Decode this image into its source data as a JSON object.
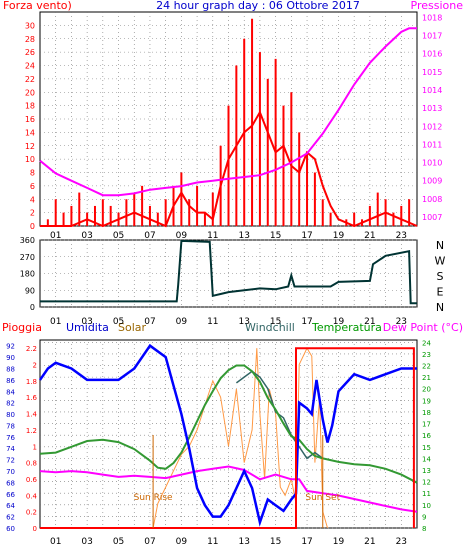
{
  "title": "24 hour graph day : 06 Ottobre 2017",
  "colors": {
    "wind": "#ff0000",
    "gust": "#ff0000",
    "pressure": "#ff00ff",
    "dir": "#003333",
    "hum": "#0000ff",
    "solar": "#ff9944",
    "windchill": "#336666",
    "temp": "#339933",
    "dew": "#ff00ff",
    "rain": "#ff0000",
    "title": "#0000cc",
    "grid": "#777777"
  },
  "x_ticks": [
    "01",
    "03",
    "05",
    "07",
    "09",
    "11",
    "13",
    "15",
    "17",
    "19",
    "21",
    "23"
  ],
  "chart_data": [
    {
      "type": "line",
      "id": "wind_pressure",
      "left_label": "Forza vento)",
      "right_label": "Pressione",
      "left_ticks": [
        "0",
        "2",
        "4",
        "6",
        "8",
        "10",
        "12",
        "14",
        "16",
        "18",
        "20",
        "22",
        "24",
        "26",
        "28",
        "30"
      ],
      "right_ticks": [
        "1007",
        "1008",
        "1009",
        "1010",
        "1011",
        "1012",
        "1013",
        "1014",
        "1015",
        "1016",
        "1017",
        "1018"
      ],
      "ylim_left": [
        0,
        32
      ],
      "ylim_right": [
        1006.5,
        1018.3
      ],
      "xlim": [
        0,
        24
      ],
      "series": [
        {
          "key": "gust",
          "axis": "left",
          "style": "bars",
          "x": [
            0.5,
            1.0,
            1.5,
            2.0,
            2.5,
            3.0,
            3.5,
            4.0,
            4.5,
            5.0,
            5.5,
            6.0,
            6.5,
            7.0,
            7.5,
            8.0,
            8.5,
            9.0,
            9.5,
            10.0,
            10.5,
            11.0,
            11.5,
            12.0,
            12.5,
            13.0,
            13.5,
            14.0,
            14.5,
            15.0,
            15.5,
            16.0,
            16.5,
            17.0,
            17.5,
            18.0,
            18.5,
            19.0,
            19.5,
            20.0,
            20.5,
            21.0,
            21.5,
            22.0,
            22.5,
            23.0,
            23.5
          ],
          "values": [
            1,
            4,
            2,
            3,
            5,
            2,
            3,
            4,
            3,
            2,
            4,
            5,
            6,
            3,
            2,
            4,
            6,
            8,
            4,
            6,
            2,
            5,
            12,
            18,
            24,
            28,
            31,
            26,
            22,
            25,
            18,
            20,
            14,
            11,
            8,
            4,
            2,
            0,
            1,
            2,
            1,
            3,
            5,
            4,
            2,
            3,
            4
          ]
        },
        {
          "key": "wind",
          "axis": "left",
          "style": "line",
          "x": [
            0,
            1,
            2,
            3,
            4,
            5,
            6,
            7,
            8,
            8.5,
            9,
            9.5,
            10,
            10.5,
            11,
            11.5,
            12,
            12.5,
            13,
            13.5,
            14,
            14.5,
            15,
            15.5,
            16,
            16.5,
            17,
            17.5,
            18,
            18.5,
            19,
            20,
            21,
            22,
            23,
            24
          ],
          "values": [
            0,
            0,
            0,
            1,
            0,
            1,
            2,
            1,
            0,
            3,
            5,
            3,
            2,
            2,
            1,
            6,
            10,
            12,
            14,
            15,
            17,
            14,
            11,
            12,
            9,
            8,
            11,
            10,
            6,
            3,
            1,
            0,
            1,
            2,
            1,
            0
          ]
        },
        {
          "key": "pressure",
          "axis": "right",
          "style": "line",
          "x": [
            0,
            1,
            2,
            3,
            4,
            5,
            6,
            7,
            8,
            9,
            10,
            11,
            12,
            13,
            14,
            15,
            16,
            17,
            18,
            19,
            20,
            21,
            22,
            23,
            23.5,
            24
          ],
          "values": [
            1010.1,
            1009.4,
            1009.0,
            1008.6,
            1008.2,
            1008.2,
            1008.3,
            1008.5,
            1008.6,
            1008.7,
            1008.9,
            1009.0,
            1009.1,
            1009.2,
            1009.3,
            1009.6,
            1010.0,
            1010.5,
            1011.6,
            1012.9,
            1014.3,
            1015.5,
            1016.4,
            1017.2,
            1017.4,
            1017.4
          ]
        }
      ]
    },
    {
      "type": "line",
      "id": "wind_direction",
      "left_ticks": [
        "0",
        "90",
        "180",
        "270",
        "360"
      ],
      "right_labels": [
        "N",
        "W",
        "S",
        "E",
        "N"
      ],
      "ylim": [
        0,
        360
      ],
      "xlim": [
        0,
        24
      ],
      "series": [
        {
          "key": "dir",
          "x": [
            0,
            8.7,
            8.8,
            9.0,
            10.8,
            11.0,
            11.5,
            12,
            13,
            14,
            15,
            15.8,
            16,
            16.2,
            17,
            18.5,
            19,
            21,
            21.2,
            22,
            23.5,
            23.6,
            24
          ],
          "values": [
            30,
            30,
            120,
            355,
            350,
            60,
            70,
            80,
            90,
            100,
            95,
            110,
            170,
            110,
            110,
            110,
            135,
            140,
            230,
            275,
            300,
            20,
            20
          ]
        }
      ]
    },
    {
      "type": "line",
      "id": "rain_humidity_temperature",
      "labels": [
        "Pioggia",
        "Umidita",
        "Solar",
        "Windchill",
        "Temperatura",
        "Dew Point (°C)"
      ],
      "left_ticks": [
        "0",
        "0.2",
        "0.4",
        "0.6",
        "0.8",
        "1",
        "1.2",
        "1.4",
        "1.6",
        "1.8",
        "2",
        "2.2"
      ],
      "hum_ticks": [
        "60",
        "62",
        "64",
        "66",
        "68",
        "70",
        "72",
        "74",
        "76",
        "78",
        "80",
        "82",
        "84",
        "86",
        "88",
        "90",
        "92"
      ],
      "right_ticks": [
        "8",
        "9",
        "10",
        "11",
        "12",
        "13",
        "14",
        "15",
        "16",
        "17",
        "18",
        "19",
        "20",
        "21",
        "22",
        "23",
        "24"
      ],
      "ylim_rain": [
        0,
        2.3
      ],
      "ylim_hum": [
        60,
        93
      ],
      "ylim_temp": [
        8,
        24.2
      ],
      "xlim": [
        0,
        24
      ],
      "annotations": [
        "Sun Rise",
        "Sun Set"
      ],
      "sun_rise_x": 7.2,
      "sun_set_x": 18.0,
      "series": [
        {
          "key": "rain",
          "x": [
            0,
            16.3,
            16.3,
            23.8,
            23.8
          ],
          "values": [
            0,
            0,
            2.2,
            2.2,
            0
          ]
        },
        {
          "key": "hum",
          "x": [
            0,
            0.5,
            1,
            2,
            3,
            4,
            5,
            6,
            7,
            8,
            8.5,
            9,
            9.5,
            10,
            10.5,
            11,
            11.5,
            12,
            12.5,
            13,
            13.5,
            14,
            14.5,
            15,
            15.5,
            16,
            16.3,
            16.5,
            17,
            17.3,
            17.6,
            18,
            18.3,
            18.6,
            19,
            20,
            21,
            22,
            23,
            24
          ],
          "values": [
            86,
            88,
            89,
            88,
            86,
            86,
            86,
            88,
            92,
            90,
            85,
            80,
            74,
            67,
            64,
            62,
            62,
            64,
            67,
            70,
            67,
            61,
            65,
            64,
            63,
            65,
            66,
            82,
            81,
            80,
            86,
            79,
            75,
            78,
            84,
            87,
            86,
            87,
            88,
            88
          ]
        },
        {
          "key": "solar",
          "x": [
            7.2,
            7.5,
            8,
            8.5,
            9,
            9.5,
            10,
            10.5,
            11,
            11.5,
            12,
            12.5,
            13,
            13.5,
            13.8,
            14.0,
            14.3,
            14.6,
            15,
            15.3,
            15.6,
            16,
            16.3,
            16.5,
            17,
            17.3,
            17.5,
            17.8,
            18,
            18.3
          ],
          "values": [
            0,
            0.3,
            0.5,
            0.7,
            0.9,
            1.0,
            1.2,
            1.5,
            1.8,
            1.6,
            1.0,
            1.7,
            0.8,
            1.2,
            2.2,
            1.4,
            0.6,
            1.7,
            1.4,
            0.5,
            0.4,
            0.6,
            0.3,
            2.0,
            2.2,
            2.1,
            0.8,
            1.6,
            0.2,
            0
          ]
        },
        {
          "key": "windchill",
          "x": [
            12.5,
            13,
            13.5,
            14,
            14.5,
            15,
            15.5,
            16,
            16.5,
            17,
            17.5,
            18
          ],
          "values": [
            20.5,
            21,
            21.5,
            21,
            20,
            18,
            17.5,
            16,
            15,
            14,
            14.5,
            14
          ]
        },
        {
          "key": "temp",
          "x": [
            0,
            1,
            2,
            3,
            4,
            5,
            6,
            7,
            7.5,
            8,
            8.5,
            9,
            9.5,
            10,
            10.5,
            11,
            11.5,
            12,
            12.5,
            13,
            13.5,
            14,
            14.5,
            15,
            15.5,
            16,
            16.5,
            17,
            17.5,
            18,
            19,
            20,
            21,
            22,
            23,
            24
          ],
          "values": [
            14.4,
            14.5,
            15.0,
            15.5,
            15.6,
            15.4,
            14.8,
            13.8,
            13.2,
            13.1,
            13.6,
            14.5,
            15.8,
            17.2,
            18.6,
            19.8,
            20.9,
            21.6,
            22.0,
            22.0,
            21.5,
            20.6,
            19.2,
            18.2,
            17.0,
            15.9,
            15.6,
            14.8,
            14.2,
            14.0,
            13.7,
            13.5,
            13.4,
            13.1,
            12.6,
            11.9
          ]
        },
        {
          "key": "dew",
          "x": [
            0,
            1,
            2,
            3,
            4,
            5,
            6,
            7,
            8,
            9,
            10,
            11,
            12,
            13,
            14,
            15,
            16,
            16.5,
            17,
            18,
            19,
            20,
            21,
            22,
            23,
            24
          ],
          "values": [
            12.9,
            12.8,
            12.9,
            12.8,
            12.6,
            12.4,
            12.5,
            12.4,
            12.3,
            12.6,
            12.9,
            13.1,
            13.3,
            13.0,
            12.2,
            12.6,
            12.2,
            12.2,
            11.2,
            11.0,
            10.8,
            10.5,
            10.2,
            9.9,
            9.6,
            9.4
          ]
        }
      ]
    }
  ]
}
